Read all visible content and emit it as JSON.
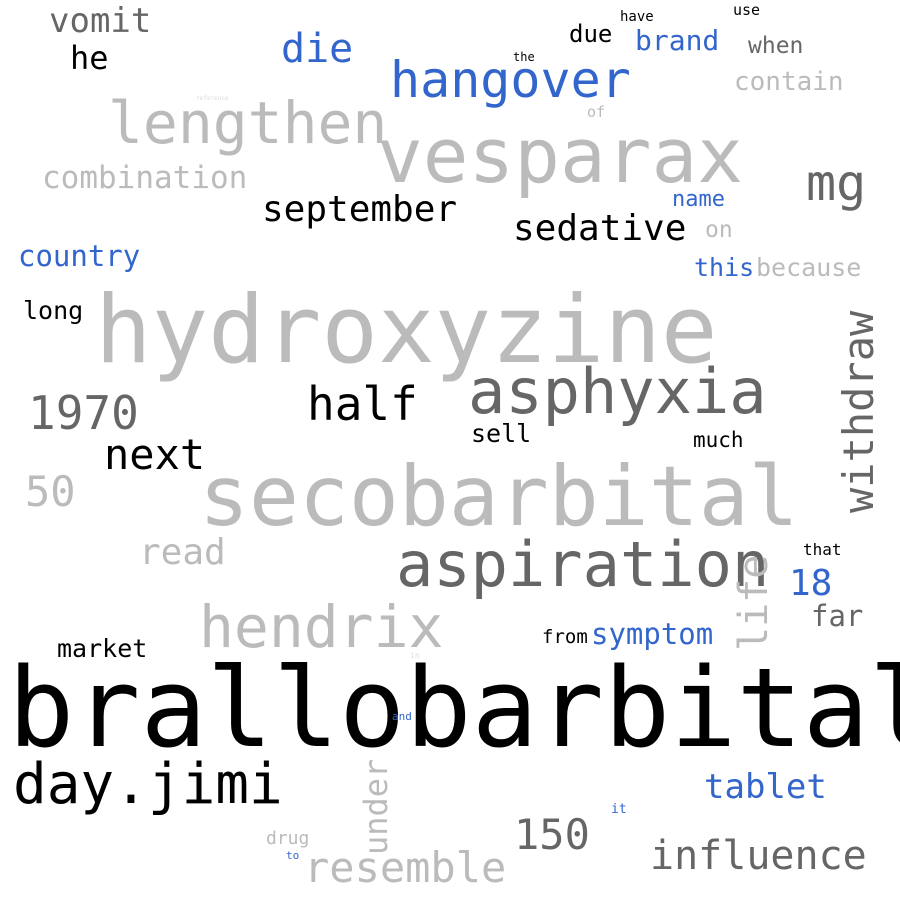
{
  "colors": {
    "light": "#bbbbbb",
    "dark": "#666666",
    "black": "#000000",
    "blue": "#3366cc",
    "faint": "#dddddd",
    "background": "#ffffff"
  },
  "words": [
    {
      "id": "vomit",
      "text": "vomit"
    },
    {
      "id": "he",
      "text": "he"
    },
    {
      "id": "die",
      "text": "die"
    },
    {
      "id": "hangover",
      "text": "hangover"
    },
    {
      "id": "due",
      "text": "due"
    },
    {
      "id": "brand",
      "text": "brand"
    },
    {
      "id": "have",
      "text": "have"
    },
    {
      "id": "use",
      "text": "use"
    },
    {
      "id": "when",
      "text": "when"
    },
    {
      "id": "the",
      "text": "the"
    },
    {
      "id": "contain",
      "text": "contain"
    },
    {
      "id": "reference",
      "text": "reference"
    },
    {
      "id": "of",
      "text": "of"
    },
    {
      "id": "lengthen",
      "text": "lengthen"
    },
    {
      "id": "vesparax",
      "text": "vesparax"
    },
    {
      "id": "combination",
      "text": "combination"
    },
    {
      "id": "mg",
      "text": "mg"
    },
    {
      "id": "name",
      "text": "name"
    },
    {
      "id": "september",
      "text": "september"
    },
    {
      "id": "sedative",
      "text": "sedative"
    },
    {
      "id": "on",
      "text": "on"
    },
    {
      "id": "country",
      "text": "country"
    },
    {
      "id": "this",
      "text": "this"
    },
    {
      "id": "because",
      "text": "because"
    },
    {
      "id": "long",
      "text": "long"
    },
    {
      "id": "hydroxyzine",
      "text": "hydroxyzine"
    },
    {
      "id": "withdraw",
      "text": "withdraw"
    },
    {
      "id": "asphyxia",
      "text": "asphyxia"
    },
    {
      "id": "1970",
      "text": "1970"
    },
    {
      "id": "half",
      "text": "half"
    },
    {
      "id": "sell",
      "text": "sell"
    },
    {
      "id": "much",
      "text": "much"
    },
    {
      "id": "next",
      "text": "next"
    },
    {
      "id": "50",
      "text": "50"
    },
    {
      "id": "secobarbital",
      "text": "secobarbital"
    },
    {
      "id": "read",
      "text": "read"
    },
    {
      "id": "aspiration",
      "text": "aspiration"
    },
    {
      "id": "life",
      "text": "life"
    },
    {
      "id": "that",
      "text": "that"
    },
    {
      "id": "18",
      "text": "18"
    },
    {
      "id": "far",
      "text": "far"
    },
    {
      "id": "hendrix",
      "text": "hendrix"
    },
    {
      "id": "symptom",
      "text": "symptom"
    },
    {
      "id": "from",
      "text": "from"
    },
    {
      "id": "market",
      "text": "market"
    },
    {
      "id": "in",
      "text": "in"
    },
    {
      "id": "brallobarbital",
      "text": "brallobarbital"
    },
    {
      "id": "and",
      "text": "and"
    },
    {
      "id": "day-jimi",
      "text": "day.jimi"
    },
    {
      "id": "under",
      "text": "under"
    },
    {
      "id": "tablet",
      "text": "tablet"
    },
    {
      "id": "it",
      "text": "it"
    },
    {
      "id": "150",
      "text": "150"
    },
    {
      "id": "drug",
      "text": "drug"
    },
    {
      "id": "to",
      "text": "to"
    },
    {
      "id": "resemble",
      "text": "resemble"
    },
    {
      "id": "influence",
      "text": "influence"
    }
  ]
}
